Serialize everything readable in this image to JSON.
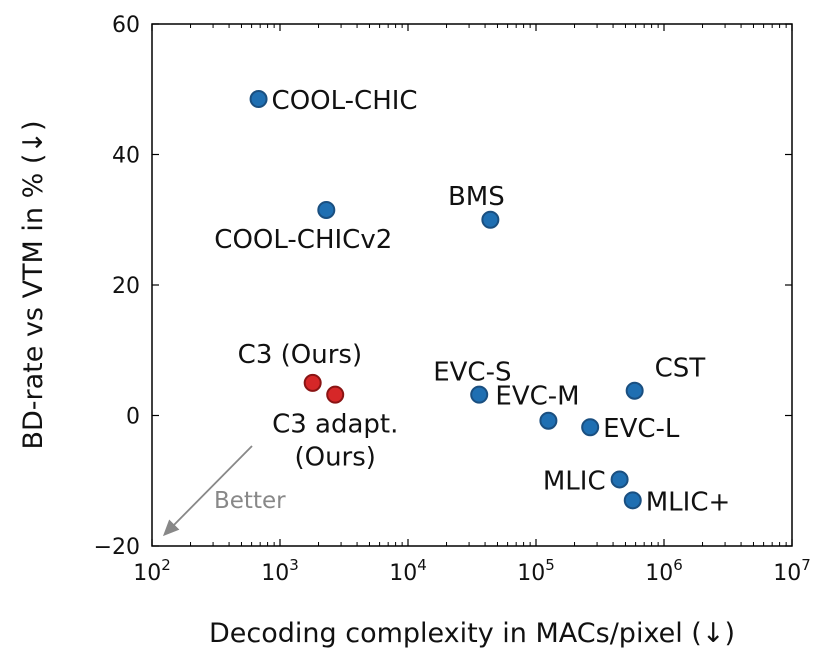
{
  "chart_data": {
    "type": "scatter",
    "xlabel": "Decoding complexity in MACs/pixel (↓)",
    "ylabel": "BD-rate vs VTM in % (↓)",
    "xscale": "log",
    "xlim": [
      100,
      10000000
    ],
    "ylim": [
      -20,
      60
    ],
    "xticks": [
      {
        "value": 100,
        "base": "10",
        "exp": "2"
      },
      {
        "value": 1000,
        "base": "10",
        "exp": "3"
      },
      {
        "value": 10000,
        "base": "10",
        "exp": "4"
      },
      {
        "value": 100000,
        "base": "10",
        "exp": "5"
      },
      {
        "value": 1000000,
        "base": "10",
        "exp": "6"
      },
      {
        "value": 10000000,
        "base": "10",
        "exp": "7"
      }
    ],
    "yticks": [
      {
        "value": -20,
        "label": "−20"
      },
      {
        "value": 0,
        "label": "0"
      },
      {
        "value": 20,
        "label": "20"
      },
      {
        "value": 40,
        "label": "40"
      },
      {
        "value": 60,
        "label": "60"
      }
    ],
    "grid": false,
    "points": [
      {
        "label": "COOL-CHIC",
        "x": 680,
        "y": 48.5,
        "color": "#1f6fb2",
        "label_pos": "right"
      },
      {
        "label": "COOL-CHICv2",
        "x": 2300,
        "y": 31.5,
        "color": "#1f6fb2",
        "label_pos": "below-left"
      },
      {
        "label": "BMS",
        "x": 44000,
        "y": 30.0,
        "color": "#1f6fb2",
        "label_pos": "above"
      },
      {
        "label": "C3 (Ours)",
        "x": 1800,
        "y": 5.0,
        "color": "#d62728",
        "label_pos": "above-right"
      },
      {
        "label": "C3 adapt. (Ours)",
        "x": 2700,
        "y": 3.2,
        "color": "#d62728",
        "label_pos": "below"
      },
      {
        "label": "EVC-S",
        "x": 36000,
        "y": 3.2,
        "color": "#1f6fb2",
        "label_pos": "above-left"
      },
      {
        "label": "EVC-M",
        "x": 125000,
        "y": -0.8,
        "color": "#1f6fb2",
        "label_pos": "above-left"
      },
      {
        "label": "EVC-L",
        "x": 265000,
        "y": -1.8,
        "color": "#1f6fb2",
        "label_pos": "right"
      },
      {
        "label": "CST",
        "x": 590000,
        "y": 3.8,
        "color": "#1f6fb2",
        "label_pos": "above-right"
      },
      {
        "label": "MLIC",
        "x": 450000,
        "y": -9.8,
        "color": "#1f6fb2",
        "label_pos": "left"
      },
      {
        "label": "MLIC+",
        "x": 570000,
        "y": -13.0,
        "color": "#1f6fb2",
        "label_pos": "right"
      }
    ],
    "annotation": {
      "text": "Better",
      "color": "#888888"
    }
  }
}
